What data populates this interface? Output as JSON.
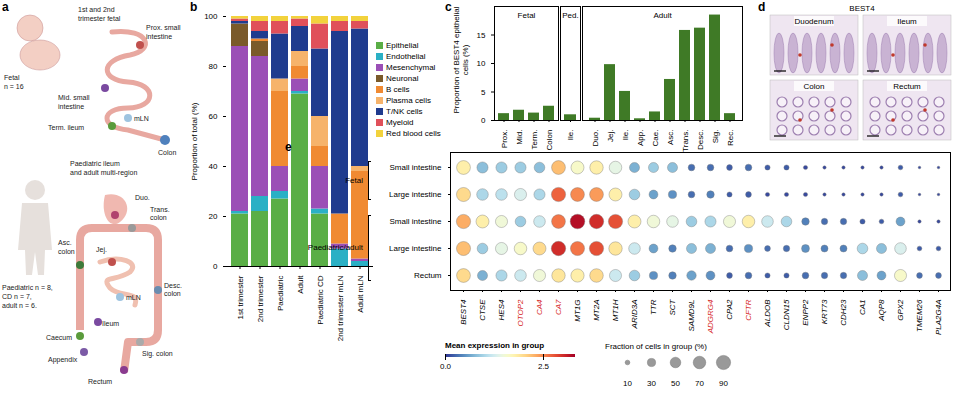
{
  "diagram": {
    "panel": "a",
    "labels": [
      "1st and 2nd",
      "trimester fetal",
      "Fetal",
      "n = 16",
      "Mid. small",
      "intestine",
      "Prox. small",
      "intestine",
      "mLN",
      "Term. ileum",
      "Colon",
      "Paediatric ileum",
      "and adult multi-region",
      "Duo.",
      "Jej.",
      "Trans.",
      "colon",
      "Paediatric n = 8,",
      "CD n = 7,",
      "adult n = 6.",
      "Asc.",
      "colon",
      "mLN",
      "Ileum",
      "Desc.",
      "colon",
      "Caecum",
      "Appendix",
      "Sig. colon",
      "Rectum"
    ]
  },
  "chart_data": [
    {
      "panel": "b",
      "type": "bar",
      "stacked": true,
      "legend": "right",
      "categories": [
        "1st trimester",
        "2nd trimester",
        "Paediatric",
        "Adult",
        "Paediatric CD",
        "2nd trimester mLN",
        "Adult mLN"
      ],
      "ylabel": "Proportion of total (%)",
      "ylim": [
        0,
        100
      ],
      "yticks": [
        0,
        20,
        40,
        60,
        80,
        100
      ],
      "series": [
        {
          "name": "Epithelial",
          "color": "#5aae46",
          "values": [
            21,
            22,
            27,
            69,
            21,
            0,
            0
          ]
        },
        {
          "name": "Endothelial",
          "color": "#2ab0c5",
          "values": [
            1,
            6,
            3,
            1,
            2,
            7,
            2
          ]
        },
        {
          "name": "Mesenchymal",
          "color": "#9b4fb6",
          "values": [
            66,
            56,
            10,
            5,
            17,
            2,
            1
          ]
        },
        {
          "name": "Neuronal",
          "color": "#7a5a2a",
          "values": [
            9,
            6,
            0,
            0,
            0,
            0,
            0
          ]
        },
        {
          "name": "B cells",
          "color": "#f08a32",
          "values": [
            0,
            1,
            30,
            5,
            8,
            12,
            35
          ]
        },
        {
          "name": "Plasma cells",
          "color": "#f6b36b",
          "values": [
            0,
            0,
            5,
            6,
            12,
            0,
            2
          ]
        },
        {
          "name": "T/NK cells",
          "color": "#1f3b8e",
          "values": [
            1,
            3,
            18,
            10,
            27,
            73,
            55
          ]
        },
        {
          "name": "Myeloid",
          "color": "#e0505a",
          "values": [
            1,
            4,
            5,
            3,
            10,
            4,
            3
          ]
        },
        {
          "name": "Red blood cells",
          "color": "#f2d23c",
          "values": [
            1,
            2,
            2,
            1,
            3,
            2,
            2
          ]
        }
      ]
    },
    {
      "panel": "c",
      "type": "bar",
      "categories": [
        "Prox.",
        "Mid.",
        "Term.",
        "Colon",
        "Ile.",
        "Duo.",
        "Jej.",
        "Ile.",
        "App.",
        "Cae.",
        "Asc.",
        "Trans.",
        "Desc.",
        "Sig.",
        "Rec."
      ],
      "groups": [
        "Fetal",
        "Fetal",
        "Fetal",
        "Fetal",
        "Ped.",
        "Adult",
        "Adult",
        "Adult",
        "Adult",
        "Adult",
        "Adult",
        "Adult",
        "Adult",
        "Adult",
        "Adult"
      ],
      "values": [
        1.2,
        1.8,
        1.3,
        2.5,
        1.0,
        0.4,
        9.8,
        5.1,
        0.3,
        1.5,
        7.2,
        15.8,
        16.2,
        18.5,
        1.2
      ],
      "color": "#3f7a26",
      "ylabel": "Proportion of BEST4 epithelial cells (%)",
      "ylim": [
        0,
        20
      ],
      "yticks": [
        0,
        5,
        10,
        15
      ]
    },
    {
      "panel": "e",
      "type": "dotplot",
      "rows": [
        {
          "group": "Fetal",
          "tissue": "Small intestine"
        },
        {
          "group": "Fetal",
          "tissue": "Large intestine"
        },
        {
          "group": "Paediatric/adult",
          "tissue": "Small intestine"
        },
        {
          "group": "Paediatric/adult",
          "tissue": "Large intestine"
        },
        {
          "group": "Paediatric/adult",
          "tissue": "Rectum"
        }
      ],
      "genes": [
        "BEST4",
        "CTSE",
        "HES4",
        "OTOP2",
        "CA4",
        "CA7",
        "MT1G",
        "MT2A",
        "MT1H",
        "ARID3A",
        "TTR",
        "SCT",
        "SAMD9L",
        "ADGRG4",
        "CPA2",
        "CFTR",
        "ALDOB",
        "CLDN15",
        "ENPP2",
        "KRT73",
        "CDH23",
        "CA1",
        "AQP8",
        "GPX2",
        "TMEM26",
        "PLA2G4A"
      ],
      "highlighted_genes": [
        "OTOP2",
        "CA4",
        "CA7",
        "ADGRG4",
        "CFTR"
      ],
      "highlight_color": "#d62728",
      "expression": [
        [
          1.8,
          0.8,
          0.9,
          0.9,
          0.8,
          2.2,
          1.6,
          1.8,
          1.4,
          0.7,
          0.9,
          0.8,
          0.3,
          0.3,
          0.2,
          0.3,
          0.2,
          0.2,
          0.1,
          0.1,
          0.1,
          0.1,
          0.1,
          0.2,
          0.1,
          0.1
        ],
        [
          2.0,
          1.0,
          1.1,
          1.3,
          1.0,
          2.7,
          2.5,
          2.4,
          1.8,
          0.9,
          0.6,
          0.5,
          0.3,
          0.4,
          0.2,
          0.2,
          0.1,
          0.1,
          0.1,
          0.1,
          0.1,
          0.1,
          0.1,
          0.2,
          0.1,
          0.1
        ],
        [
          2.3,
          1.8,
          1.5,
          0.9,
          1.2,
          2.6,
          3.2,
          3.0,
          2.8,
          1.8,
          1.5,
          1.4,
          0.9,
          1.0,
          1.5,
          1.8,
          1.2,
          1.0,
          0.4,
          0.3,
          0.3,
          0.2,
          0.2,
          0.6,
          0.1,
          0.1
        ],
        [
          2.2,
          0.9,
          1.4,
          1.6,
          2.0,
          3.0,
          2.6,
          2.8,
          1.9,
          1.2,
          0.6,
          0.4,
          0.8,
          0.7,
          0.3,
          0.5,
          0.3,
          0.3,
          0.5,
          0.4,
          0.4,
          1.0,
          0.8,
          1.3,
          0.2,
          0.2
        ],
        [
          2.0,
          0.7,
          1.0,
          1.2,
          1.5,
          1.9,
          1.8,
          2.0,
          1.2,
          0.9,
          0.5,
          0.4,
          0.6,
          0.5,
          0.2,
          0.3,
          0.2,
          0.2,
          0.3,
          0.3,
          0.3,
          0.8,
          0.6,
          1.6,
          0.3,
          0.3
        ]
      ],
      "fraction": [
        [
          85,
          55,
          55,
          55,
          50,
          85,
          75,
          80,
          70,
          45,
          45,
          45,
          20,
          20,
          15,
          20,
          12,
          12,
          8,
          5,
          5,
          5,
          5,
          10,
          3,
          3
        ],
        [
          88,
          60,
          60,
          65,
          55,
          90,
          85,
          85,
          75,
          50,
          35,
          30,
          20,
          25,
          12,
          15,
          8,
          8,
          8,
          5,
          5,
          5,
          5,
          10,
          3,
          3
        ],
        [
          90,
          75,
          65,
          50,
          60,
          85,
          95,
          92,
          90,
          75,
          70,
          60,
          50,
          55,
          65,
          70,
          60,
          50,
          25,
          18,
          18,
          12,
          10,
          35,
          5,
          5
        ],
        [
          88,
          50,
          65,
          70,
          75,
          92,
          88,
          90,
          80,
          60,
          35,
          25,
          45,
          45,
          20,
          30,
          15,
          18,
          28,
          22,
          22,
          50,
          45,
          60,
          10,
          10
        ],
        [
          85,
          45,
          55,
          60,
          65,
          80,
          78,
          82,
          65,
          50,
          30,
          25,
          40,
          35,
          15,
          20,
          12,
          12,
          20,
          18,
          18,
          45,
          35,
          65,
          15,
          15
        ]
      ],
      "color_label": "Mean expression in group",
      "color_range": [
        0,
        3.3
      ],
      "color_ticks": [
        0,
        2.5
      ],
      "size_label": "Fraction of cells in group (%)",
      "size_range": [
        0,
        100
      ],
      "size_ticks": [
        10,
        30,
        50,
        70,
        90
      ]
    }
  ],
  "images": {
    "panel": "d",
    "title": "BEST4",
    "tiles": [
      "Duodenum",
      "Ileum",
      "Colon",
      "Rectum"
    ]
  }
}
